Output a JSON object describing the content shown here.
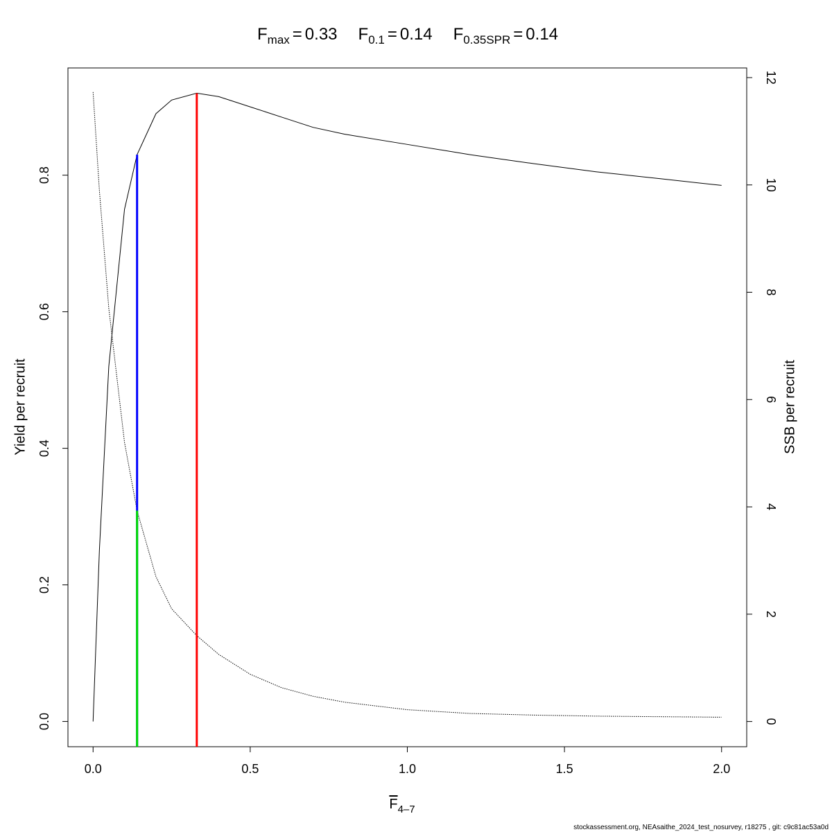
{
  "chart_data": {
    "type": "line",
    "title_separator": "=",
    "reference_points": [
      {
        "name": "F",
        "sub": "max",
        "x": 0.33,
        "y": 0.92,
        "color": "#ff0000"
      },
      {
        "name": "F",
        "sub": "0.1",
        "x": 0.14,
        "y": 0.83,
        "color": "#0000ff"
      },
      {
        "name": "F",
        "sub": "0.35SPR",
        "x": 0.14,
        "y2": 3.93,
        "color": "#00dd00"
      }
    ],
    "xlabel": {
      "text": "F",
      "sub": "4–7"
    },
    "ylabel": "Yield per recruit",
    "y2label": "SSB per recruit",
    "footer": "stockassessment.org, NEAsaithe_2024_test_nosurvey, r18275 , git: c9c81ac53a0d",
    "x": [
      0,
      0.02,
      0.05,
      0.1,
      0.14,
      0.2,
      0.25,
      0.33,
      0.4,
      0.5,
      0.6,
      0.7,
      0.8,
      1.0,
      1.2,
      1.4,
      1.6,
      1.8,
      2.0
    ],
    "series": [
      {
        "name": "Yield per recruit",
        "color": "#000000",
        "dash": "solid",
        "values": [
          0,
          0.25,
          0.52,
          0.75,
          0.83,
          0.89,
          0.91,
          0.92,
          0.915,
          0.9,
          0.885,
          0.87,
          0.86,
          0.845,
          0.83,
          0.817,
          0.805,
          0.795,
          0.785
        ]
      },
      {
        "name": "SSB per recruit",
        "color": "#000000",
        "dash": "dotted",
        "axis": "y2",
        "values": [
          11.73,
          9.9,
          7.7,
          5.2,
          3.93,
          2.7,
          2.1,
          1.6,
          1.25,
          0.88,
          0.63,
          0.47,
          0.36,
          0.22,
          0.15,
          0.12,
          0.1,
          0.09,
          0.08
        ]
      }
    ],
    "xlim": [
      -0.08,
      2.08
    ],
    "xticks": [
      {
        "value": 0,
        "label": "0.0"
      },
      {
        "value": 0.5,
        "label": "0.5"
      },
      {
        "value": 1,
        "label": "1.0"
      },
      {
        "value": 1.5,
        "label": "1.5"
      },
      {
        "value": 2,
        "label": "2.0"
      }
    ],
    "ylim": [
      -0.037,
      0.957
    ],
    "yticks": [
      {
        "value": 0,
        "label": "0.0"
      },
      {
        "value": 0.2,
        "label": "0.2"
      },
      {
        "value": 0.4,
        "label": "0.4"
      },
      {
        "value": 0.6,
        "label": "0.6"
      },
      {
        "value": 0.8,
        "label": "0.8"
      }
    ],
    "y2lim": [
      -0.47,
      12.18
    ],
    "y2ticks": [
      0,
      2,
      4,
      6,
      8,
      10,
      12
    ],
    "grid": false
  }
}
